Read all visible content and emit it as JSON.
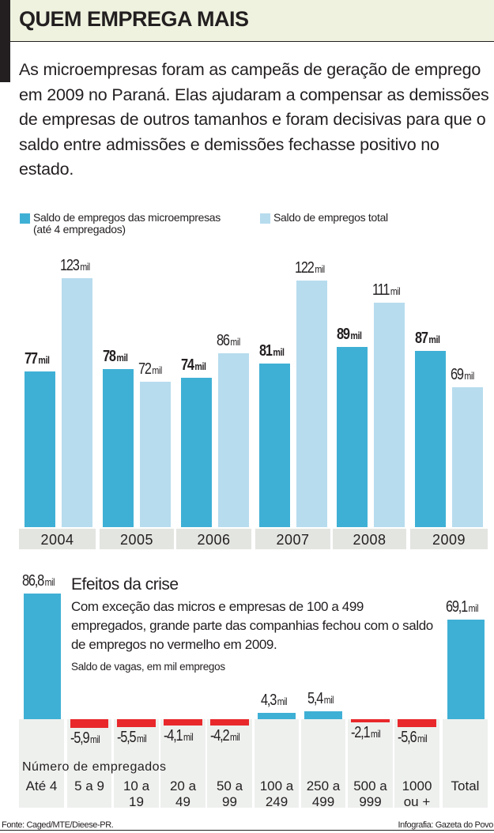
{
  "header": {
    "title": "QUEM EMPREGA MAIS",
    "lead": "As microempresas foram as campeãs de geração de emprego em 2009 no Paraná. Elas ajudaram a compensar as demissões de empresas de outros tamanhos e foram decisivas para que o saldo entre admissões e demissões fechasse positivo no estado."
  },
  "colors": {
    "micro": "#3fb0d5",
    "total": "#b7dcee",
    "negative": "#e8282b",
    "header_band": "#eef2df"
  },
  "chart_data": [
    {
      "type": "bar",
      "title": "",
      "legend": [
        {
          "name": "Saldo de empregos das microempresas (até 4 empregados)",
          "line1": "Saldo de empregos das microempresas",
          "line2": "(até 4 empregados)"
        },
        {
          "name": "Saldo de empregos total"
        }
      ],
      "legend_position": "top-left",
      "categories": [
        "2004",
        "2005",
        "2006",
        "2007",
        "2008",
        "2009"
      ],
      "unit": "mil",
      "series": [
        {
          "name": "Saldo de empregos das microempresas (até 4 empregados)",
          "values": [
            77,
            78,
            74,
            81,
            89,
            87
          ]
        },
        {
          "name": "Saldo de empregos total",
          "values": [
            123,
            72,
            86,
            122,
            111,
            69
          ]
        }
      ],
      "ylim": [
        0,
        130
      ],
      "grid": false,
      "xlabel": "",
      "ylabel": ""
    },
    {
      "type": "bar",
      "title": "Efeitos da crise",
      "description": "Com exceção das micros e empresas de 100 a 499 empregados, grande parte das companhias fechou com o saldo de empregos no vermelho em 2009.",
      "subtitle": "Saldo de vagas, em mil empregos",
      "xlabel": "Número de empregados",
      "unit": "mil",
      "categories": [
        {
          "line1": "Até 4",
          "line2": ""
        },
        {
          "line1": "5 a 9",
          "line2": ""
        },
        {
          "line1": "10 a",
          "line2": "19"
        },
        {
          "line1": "20 a",
          "line2": "49"
        },
        {
          "line1": "50 a",
          "line2": "99"
        },
        {
          "line1": "100 a",
          "line2": "249"
        },
        {
          "line1": "250 a",
          "line2": "499"
        },
        {
          "line1": "500 a",
          "line2": "999"
        },
        {
          "line1": "1000",
          "line2": "ou +"
        },
        {
          "line1": "Total",
          "line2": ""
        }
      ],
      "values": [
        86.8,
        -5.9,
        -5.5,
        -4.1,
        -4.2,
        4.3,
        5.4,
        -2.1,
        -5.6,
        69.1
      ],
      "value_labels": [
        "86,8",
        "-5,9",
        "-5,5",
        "-4,1",
        "-4,2",
        "4,3",
        "5,4",
        "-2,1",
        "-5,6",
        "69,1"
      ],
      "grid": false
    }
  ],
  "footer": {
    "source": "Fonte: Caged/MTE/Dieese-PR.",
    "credit": "Infografia: Gazeta do Povo"
  }
}
